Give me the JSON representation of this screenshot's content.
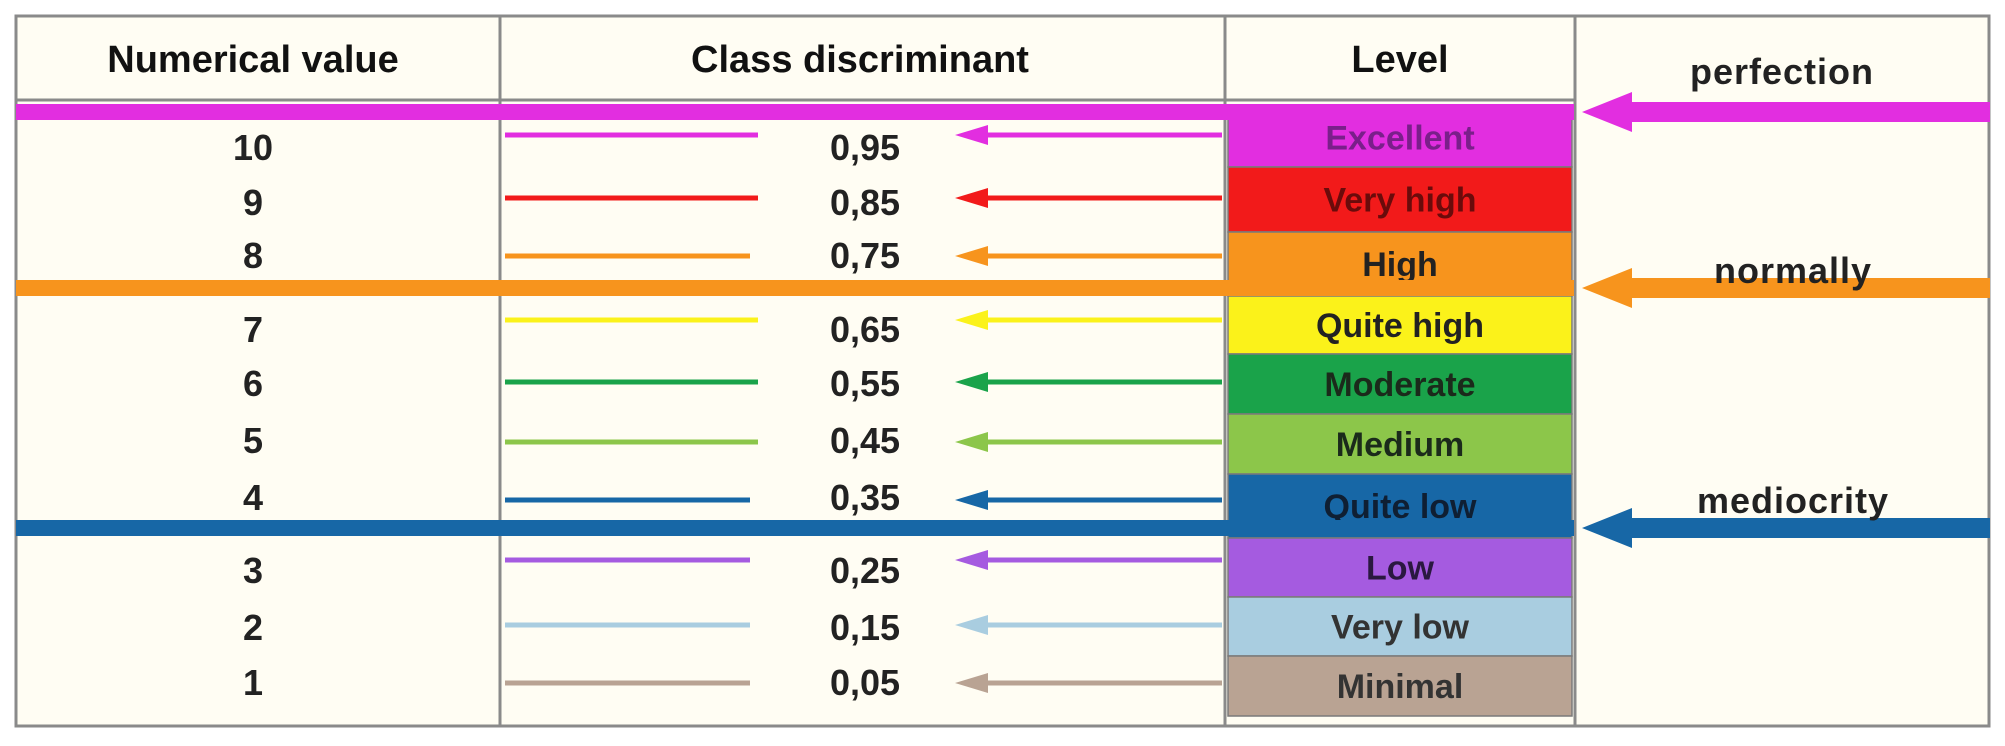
{
  "headers": {
    "numerical": "Numerical value",
    "discriminant": "Class discriminant",
    "level": "Level",
    "perfection": "perfection"
  },
  "side_labels": {
    "normally": "normally",
    "mediocrity": "mediocrity"
  },
  "rows": [
    {
      "value": "10",
      "discriminant": "0,95",
      "level": "Excellent",
      "color": "#e22ee0",
      "text_color": "#7a1f8a"
    },
    {
      "value": "9",
      "discriminant": "0,85",
      "level": "Very high",
      "color": "#f21a1a",
      "text_color": "#6a0b0b"
    },
    {
      "value": "8",
      "discriminant": "0,75",
      "level": "High",
      "color": "#f7941d",
      "text_color": "#222222"
    },
    {
      "value": "7",
      "discriminant": "0,65",
      "level": "Quite high",
      "color": "#fbf21a",
      "text_color": "#222222"
    },
    {
      "value": "6",
      "discriminant": "0,55",
      "level": "Moderate",
      "color": "#1aa34a",
      "text_color": "#1b2a1b"
    },
    {
      "value": "5",
      "discriminant": "0,45",
      "level": "Medium",
      "color": "#8cc64a",
      "text_color": "#1b2a1b"
    },
    {
      "value": "4",
      "discriminant": "0,35",
      "level": "Quite low",
      "color": "#1767a6",
      "text_color": "#0f1f33"
    },
    {
      "value": "3",
      "discriminant": "0,25",
      "level": "Low",
      "color": "#a55be0",
      "text_color": "#2a1840"
    },
    {
      "value": "2",
      "discriminant": "0,15",
      "level": "Very low",
      "color": "#a9cde0",
      "text_color": "#333333"
    },
    {
      "value": "1",
      "discriminant": "0,05",
      "level": "Minimal",
      "color": "#b9a393",
      "text_color": "#333333"
    }
  ],
  "colors": {
    "background": "#fffdf3",
    "perfection_line": "#e22ee0",
    "normally_line": "#f7941d",
    "mediocrity_line": "#1767a6",
    "grid": "#8a8a8a"
  }
}
